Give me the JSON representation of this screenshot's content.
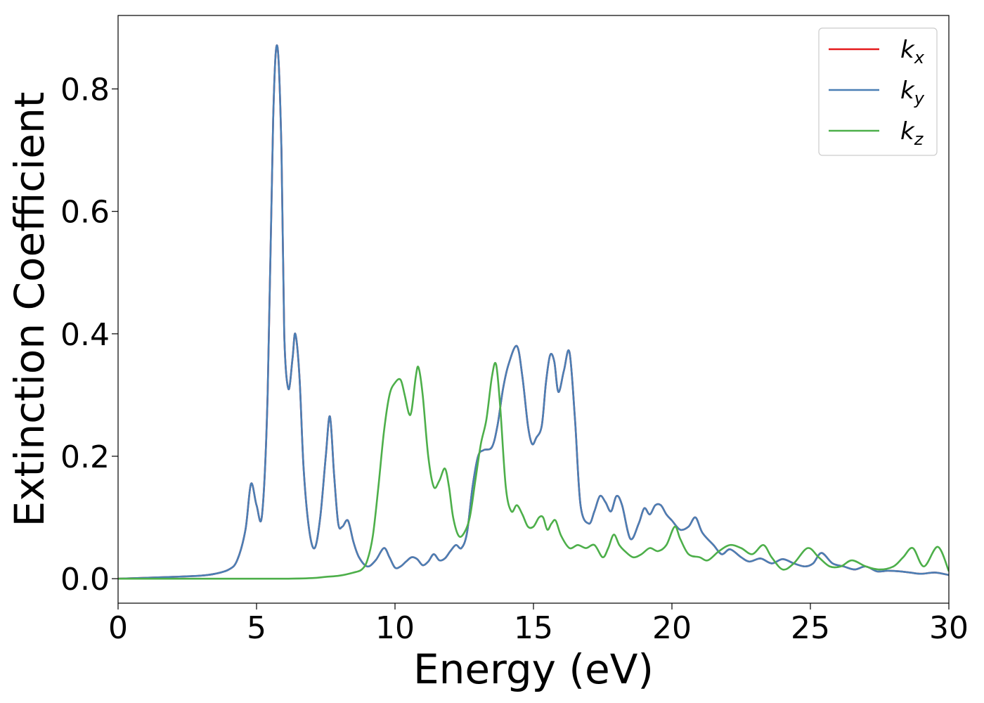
{
  "chart_data": {
    "type": "line",
    "title": "",
    "xlabel": "Energy (eV)",
    "ylabel": "Extinction Coefficient",
    "xlim": [
      0,
      30
    ],
    "ylim": [
      -0.04,
      0.92
    ],
    "xticks": [
      0,
      5,
      10,
      15,
      20,
      25,
      30
    ],
    "yticks": [
      0.0,
      0.2,
      0.4,
      0.6,
      0.8
    ],
    "xtick_labels": [
      "0",
      "5",
      "10",
      "15",
      "20",
      "25",
      "30"
    ],
    "ytick_labels": [
      "0.0",
      "0.2",
      "0.4",
      "0.6",
      "0.8"
    ],
    "grid": false,
    "legend_position": "top-right",
    "series": [
      {
        "name": "k",
        "subscript": "x",
        "color": "#e41a1c",
        "x": [
          0,
          2,
          3,
          3.5,
          4,
          4.3,
          4.6,
          4.8,
          5.0,
          5.2,
          5.4,
          5.6,
          5.75,
          5.9,
          6.0,
          6.15,
          6.3,
          6.4,
          6.55,
          6.7,
          6.9,
          7.1,
          7.3,
          7.5,
          7.65,
          7.8,
          7.95,
          8.1,
          8.3,
          8.5,
          8.7,
          9.0,
          9.3,
          9.6,
          9.8,
          10.0,
          10.2,
          10.4,
          10.6,
          10.8,
          11.0,
          11.2,
          11.4,
          11.6,
          11.8,
          12.0,
          12.2,
          12.4,
          12.6,
          12.8,
          13.0,
          13.2,
          13.5,
          13.7,
          13.9,
          14.1,
          14.4,
          14.6,
          14.8,
          14.95,
          15.1,
          15.3,
          15.45,
          15.6,
          15.75,
          15.9,
          16.1,
          16.3,
          16.5,
          16.7,
          17.0,
          17.2,
          17.4,
          17.6,
          17.8,
          18.0,
          18.2,
          18.5,
          18.8,
          19.0,
          19.2,
          19.4,
          19.6,
          19.8,
          20.0,
          20.3,
          20.6,
          20.85,
          21.1,
          21.5,
          21.8,
          22.1,
          22.5,
          22.8,
          23.2,
          23.6,
          24.0,
          24.4,
          24.8,
          25.1,
          25.4,
          25.8,
          26.2,
          26.6,
          27.0,
          27.4,
          27.8,
          28.2,
          28.6,
          29.0,
          29.5,
          30.0
        ],
        "y": [
          0.0,
          0.003,
          0.005,
          0.008,
          0.015,
          0.03,
          0.08,
          0.155,
          0.12,
          0.105,
          0.3,
          0.75,
          0.87,
          0.7,
          0.4,
          0.31,
          0.36,
          0.4,
          0.33,
          0.18,
          0.08,
          0.05,
          0.1,
          0.2,
          0.265,
          0.17,
          0.09,
          0.085,
          0.095,
          0.06,
          0.035,
          0.02,
          0.03,
          0.05,
          0.035,
          0.018,
          0.02,
          0.028,
          0.035,
          0.032,
          0.022,
          0.028,
          0.04,
          0.03,
          0.033,
          0.045,
          0.055,
          0.05,
          0.075,
          0.15,
          0.2,
          0.21,
          0.215,
          0.25,
          0.31,
          0.35,
          0.38,
          0.33,
          0.25,
          0.22,
          0.23,
          0.25,
          0.32,
          0.365,
          0.355,
          0.305,
          0.34,
          0.37,
          0.26,
          0.12,
          0.09,
          0.11,
          0.135,
          0.125,
          0.11,
          0.135,
          0.12,
          0.065,
          0.09,
          0.115,
          0.105,
          0.12,
          0.12,
          0.105,
          0.095,
          0.08,
          0.085,
          0.1,
          0.075,
          0.055,
          0.04,
          0.048,
          0.035,
          0.028,
          0.033,
          0.025,
          0.032,
          0.025,
          0.02,
          0.025,
          0.042,
          0.025,
          0.02,
          0.015,
          0.02,
          0.012,
          0.013,
          0.012,
          0.01,
          0.008,
          0.01,
          0.006
        ]
      },
      {
        "name": "k",
        "subscript": "y",
        "color": "#4a7fb5",
        "x": [
          0,
          2,
          3,
          3.5,
          4,
          4.3,
          4.6,
          4.8,
          5.0,
          5.2,
          5.4,
          5.6,
          5.75,
          5.9,
          6.0,
          6.15,
          6.3,
          6.4,
          6.55,
          6.7,
          6.9,
          7.1,
          7.3,
          7.5,
          7.65,
          7.8,
          7.95,
          8.1,
          8.3,
          8.5,
          8.7,
          9.0,
          9.3,
          9.6,
          9.8,
          10.0,
          10.2,
          10.4,
          10.6,
          10.8,
          11.0,
          11.2,
          11.4,
          11.6,
          11.8,
          12.0,
          12.2,
          12.4,
          12.6,
          12.8,
          13.0,
          13.2,
          13.5,
          13.7,
          13.9,
          14.1,
          14.4,
          14.6,
          14.8,
          14.95,
          15.1,
          15.3,
          15.45,
          15.6,
          15.75,
          15.9,
          16.1,
          16.3,
          16.5,
          16.7,
          17.0,
          17.2,
          17.4,
          17.6,
          17.8,
          18.0,
          18.2,
          18.5,
          18.8,
          19.0,
          19.2,
          19.4,
          19.6,
          19.8,
          20.0,
          20.3,
          20.6,
          20.85,
          21.1,
          21.5,
          21.8,
          22.1,
          22.5,
          22.8,
          23.2,
          23.6,
          24.0,
          24.4,
          24.8,
          25.1,
          25.4,
          25.8,
          26.2,
          26.6,
          27.0,
          27.4,
          27.8,
          28.2,
          28.6,
          29.0,
          29.5,
          30.0
        ],
        "y": [
          0.0,
          0.003,
          0.005,
          0.008,
          0.015,
          0.03,
          0.08,
          0.155,
          0.12,
          0.105,
          0.3,
          0.75,
          0.87,
          0.7,
          0.4,
          0.31,
          0.36,
          0.4,
          0.33,
          0.18,
          0.08,
          0.05,
          0.1,
          0.2,
          0.265,
          0.17,
          0.09,
          0.085,
          0.095,
          0.06,
          0.035,
          0.02,
          0.03,
          0.05,
          0.035,
          0.018,
          0.02,
          0.028,
          0.035,
          0.032,
          0.022,
          0.028,
          0.04,
          0.03,
          0.033,
          0.045,
          0.055,
          0.05,
          0.075,
          0.15,
          0.2,
          0.21,
          0.215,
          0.25,
          0.31,
          0.35,
          0.38,
          0.33,
          0.25,
          0.22,
          0.23,
          0.25,
          0.32,
          0.365,
          0.355,
          0.305,
          0.34,
          0.37,
          0.26,
          0.12,
          0.09,
          0.11,
          0.135,
          0.125,
          0.11,
          0.135,
          0.12,
          0.065,
          0.09,
          0.115,
          0.105,
          0.12,
          0.12,
          0.105,
          0.095,
          0.08,
          0.085,
          0.1,
          0.075,
          0.055,
          0.04,
          0.048,
          0.035,
          0.028,
          0.033,
          0.025,
          0.032,
          0.025,
          0.02,
          0.025,
          0.042,
          0.025,
          0.02,
          0.015,
          0.02,
          0.012,
          0.013,
          0.012,
          0.01,
          0.008,
          0.01,
          0.006
        ]
      },
      {
        "name": "k",
        "subscript": "z",
        "color": "#4daf4a",
        "x": [
          0,
          4,
          6,
          7,
          7.5,
          8,
          8.5,
          8.8,
          9.0,
          9.2,
          9.4,
          9.6,
          9.8,
          10.0,
          10.2,
          10.35,
          10.5,
          10.6,
          10.75,
          10.85,
          11.0,
          11.2,
          11.4,
          11.6,
          11.8,
          11.95,
          12.1,
          12.3,
          12.5,
          12.7,
          12.9,
          13.1,
          13.3,
          13.5,
          13.65,
          13.8,
          14.0,
          14.2,
          14.4,
          14.6,
          14.8,
          15.0,
          15.2,
          15.35,
          15.5,
          15.65,
          15.8,
          16.0,
          16.3,
          16.6,
          16.9,
          17.2,
          17.5,
          17.7,
          17.9,
          18.1,
          18.3,
          18.6,
          18.9,
          19.2,
          19.5,
          19.8,
          20.1,
          20.3,
          20.6,
          21.0,
          21.3,
          21.7,
          22.1,
          22.5,
          22.9,
          23.3,
          23.6,
          24.0,
          24.4,
          24.9,
          25.3,
          25.7,
          26.1,
          26.5,
          27.0,
          27.5,
          28.0,
          28.35,
          28.7,
          29.1,
          29.6,
          30.0
        ],
        "y": [
          0.0,
          0.0,
          0.0,
          0.001,
          0.003,
          0.005,
          0.01,
          0.015,
          0.03,
          0.07,
          0.15,
          0.24,
          0.3,
          0.32,
          0.325,
          0.3,
          0.27,
          0.275,
          0.33,
          0.345,
          0.3,
          0.2,
          0.15,
          0.16,
          0.18,
          0.15,
          0.1,
          0.07,
          0.075,
          0.1,
          0.16,
          0.22,
          0.26,
          0.33,
          0.35,
          0.28,
          0.15,
          0.11,
          0.12,
          0.105,
          0.085,
          0.085,
          0.1,
          0.1,
          0.08,
          0.09,
          0.095,
          0.07,
          0.05,
          0.055,
          0.05,
          0.055,
          0.035,
          0.05,
          0.072,
          0.055,
          0.045,
          0.035,
          0.04,
          0.05,
          0.045,
          0.055,
          0.085,
          0.065,
          0.04,
          0.035,
          0.03,
          0.045,
          0.055,
          0.05,
          0.04,
          0.055,
          0.035,
          0.015,
          0.025,
          0.05,
          0.035,
          0.02,
          0.02,
          0.03,
          0.02,
          0.015,
          0.02,
          0.035,
          0.05,
          0.02,
          0.052,
          0.012
        ]
      }
    ]
  }
}
